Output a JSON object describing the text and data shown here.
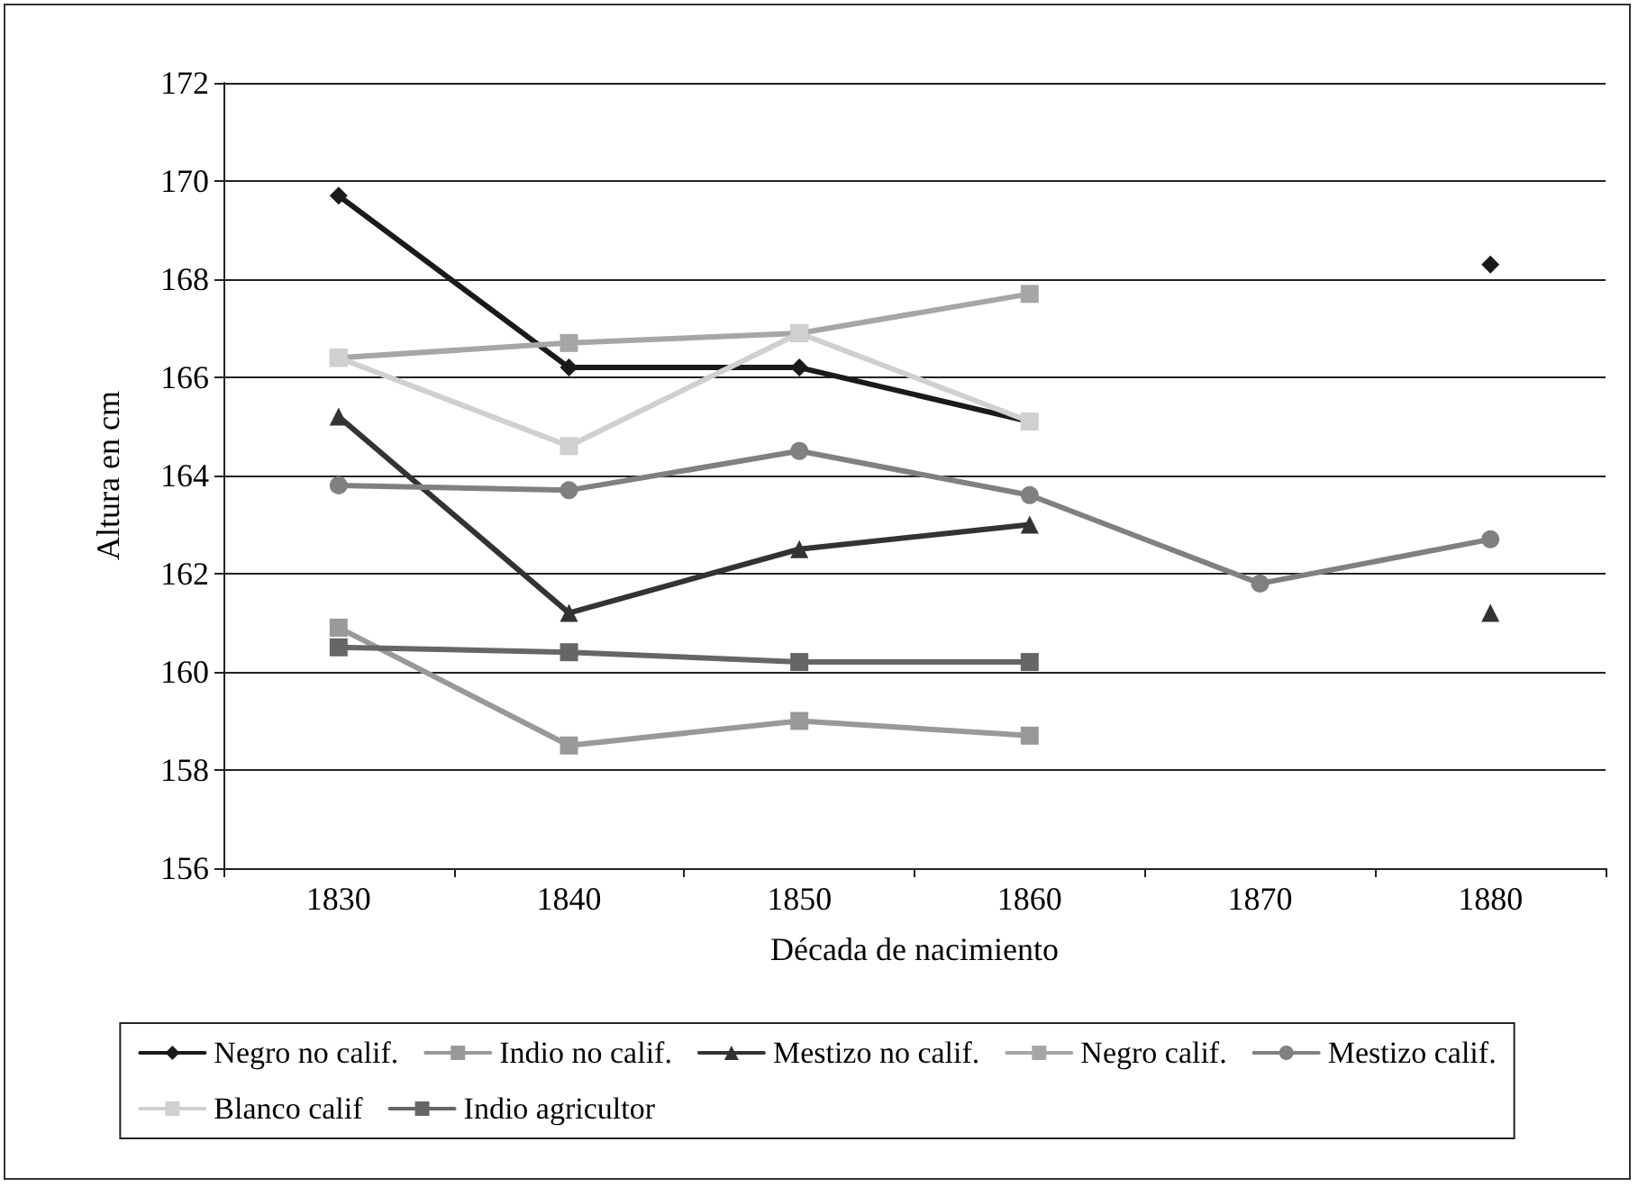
{
  "chart_data": {
    "type": "line",
    "xlabel": "Década de nacimiento",
    "ylabel": "Altura en cm",
    "categories": [
      "1830",
      "1840",
      "1850",
      "1860",
      "1870",
      "1880"
    ],
    "ylim": [
      156,
      172
    ],
    "yticks": [
      156,
      158,
      160,
      162,
      164,
      166,
      168,
      170,
      172
    ],
    "grid": "y",
    "legend": "bottom",
    "line_style": "solid",
    "series": [
      {
        "name": "Negro no calif.",
        "color": "#1a1a1a",
        "marker": "diamond",
        "values": [
          169.7,
          166.2,
          166.2,
          165.1,
          null,
          168.3
        ]
      },
      {
        "name": "Indio no calif.",
        "color": "#999999",
        "marker": "square",
        "values": [
          160.9,
          158.5,
          159.0,
          158.7,
          null,
          null
        ]
      },
      {
        "name": "Mestizo no calif.",
        "color": "#333333",
        "marker": "triangle",
        "values": [
          165.2,
          161.2,
          162.5,
          163.0,
          null,
          161.2
        ]
      },
      {
        "name": "Negro calif.",
        "color": "#a6a6a6",
        "marker": "square",
        "values": [
          166.4,
          166.7,
          166.9,
          167.7,
          null,
          null
        ]
      },
      {
        "name": "Mestizo calif.",
        "color": "#808080",
        "marker": "circle",
        "values": [
          163.8,
          163.7,
          164.5,
          163.6,
          161.8,
          162.7
        ]
      },
      {
        "name": "Blanco calif",
        "color": "#d0d0d0",
        "marker": "square",
        "values": [
          166.4,
          164.6,
          166.9,
          165.1,
          null,
          null
        ]
      },
      {
        "name": "Indio agricultor",
        "color": "#666666",
        "marker": "square",
        "values": [
          160.5,
          160.4,
          160.2,
          160.2,
          null,
          null
        ]
      }
    ]
  }
}
